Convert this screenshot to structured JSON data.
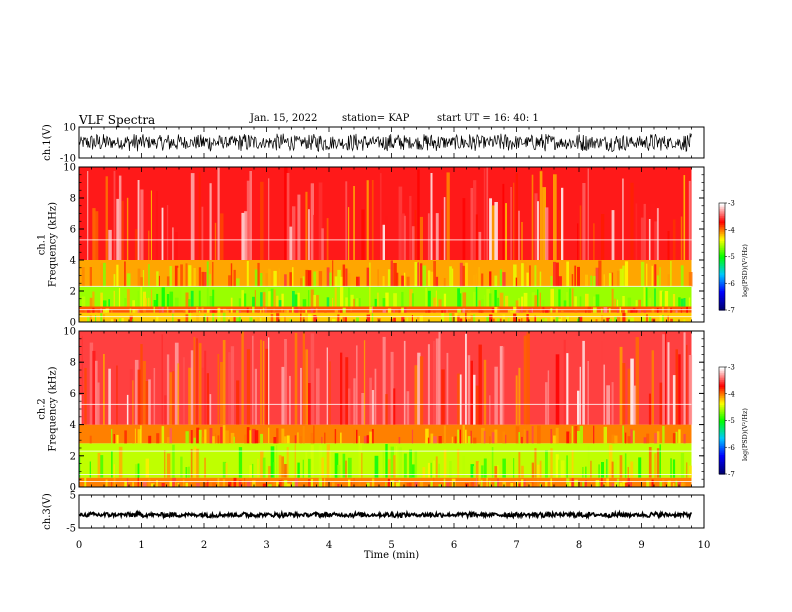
{
  "header": {
    "title": "VLF Spectra",
    "date": "Jan. 15, 2022",
    "station": "station= KAP",
    "start": "start  UT =  16: 40: 1"
  },
  "chart_data": [
    {
      "type": "line",
      "name": "ch1-waveform",
      "ylabel": "ch.1(V)",
      "ylim": [
        -10,
        10
      ],
      "y_ticks": [
        "10",
        "-10"
      ],
      "x_range_min": [
        0,
        9.8
      ],
      "signal_level_v": [
        -6,
        6
      ]
    },
    {
      "type": "heatmap",
      "name": "ch1-spectrogram",
      "ylabel": "ch.1\nFrequency  (kHz)",
      "ylim": [
        0,
        10
      ],
      "y_ticks": [
        "0",
        "2",
        "4",
        "6",
        "8",
        "10"
      ],
      "x_range_min": [
        0,
        9.8
      ],
      "bands_khz": [
        {
          "range": [
            0,
            0.6
          ],
          "log_psd": -4.2
        },
        {
          "range": [
            0.6,
            1.0
          ],
          "log_psd": -3.9
        },
        {
          "range": [
            1.0,
            2.3
          ],
          "log_psd": -4.6
        },
        {
          "range": [
            2.3,
            4.0
          ],
          "log_psd": -4.1
        },
        {
          "range": [
            4.0,
            10.0
          ],
          "log_psd": -3.6
        }
      ],
      "colorbar": {
        "label": "log(PSD)(V²/Hz)",
        "range": [
          -7,
          -3
        ],
        "ticks": [
          "-3",
          "-4",
          "-5",
          "-6",
          "-7"
        ]
      }
    },
    {
      "type": "heatmap",
      "name": "ch2-spectrogram",
      "ylabel": "ch.2\nFrequency  (kHz)",
      "ylim": [
        0,
        10
      ],
      "y_ticks": [
        "0",
        "2",
        "4",
        "6",
        "8",
        "10"
      ],
      "x_range_min": [
        0,
        9.8
      ],
      "bands_khz": [
        {
          "range": [
            0,
            0.6
          ],
          "log_psd": -4.0
        },
        {
          "range": [
            0.6,
            2.8
          ],
          "log_psd": -4.5
        },
        {
          "range": [
            2.8,
            4.0
          ],
          "log_psd": -4.0
        },
        {
          "range": [
            4.0,
            10.0
          ],
          "log_psd": -3.5
        }
      ],
      "colorbar": {
        "label": "log(PSD)(V²/Hz)",
        "range": [
          -7,
          -3
        ],
        "ticks": [
          "-3",
          "-4",
          "-5",
          "-6",
          "-7"
        ]
      }
    },
    {
      "type": "line",
      "name": "ch3-waveform",
      "ylabel": "ch.3(V)",
      "ylim": [
        -5,
        5
      ],
      "y_ticks": [
        "5",
        "-5"
      ],
      "x_range_min": [
        0,
        9.8
      ],
      "signal_level_v": [
        -1.8,
        -0.2
      ]
    }
  ],
  "x_axis": {
    "label": "Time  (min)",
    "range": [
      0,
      10
    ],
    "ticks": [
      "0",
      "1",
      "2",
      "3",
      "4",
      "5",
      "6",
      "7",
      "8",
      "9",
      "10"
    ]
  },
  "colors": {
    "waveform": "#000000",
    "colormap": [
      "#000070",
      "#0000ff",
      "#00c8ff",
      "#00ff00",
      "#ffff00",
      "#ff0000",
      "#ffffff"
    ]
  }
}
